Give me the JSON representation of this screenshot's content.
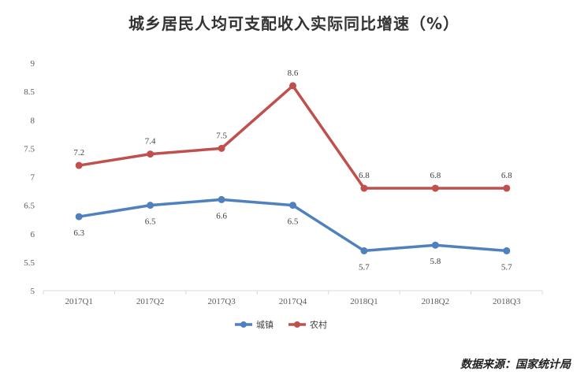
{
  "title": "城乡居民人均可支配收入实际同比增速（%）",
  "source": "数据来源：国家统计局",
  "chart_data": {
    "type": "line",
    "title": "城乡居民人均可支配收入实际同比增速（%）",
    "categories": [
      "2017Q1",
      "2017Q2",
      "2017Q3",
      "2017Q4",
      "2018Q1",
      "2018Q2",
      "2018Q3"
    ],
    "ylim": [
      5,
      9
    ],
    "yticks": [
      "5",
      "5.5",
      "6",
      "6.5",
      "7",
      "7.5",
      "8",
      "8.5",
      "9"
    ],
    "grid": false,
    "legend_position": "bottom",
    "series": [
      {
        "name": "城镇",
        "color": "#4f81bd",
        "values": [
          6.3,
          6.5,
          6.6,
          6.5,
          5.7,
          5.8,
          5.7
        ],
        "labels": [
          "6.3",
          "6.5",
          "6.6",
          "6.5",
          "5.7",
          "5.8",
          "5.7"
        ]
      },
      {
        "name": "农村",
        "color": "#c0504d",
        "values": [
          7.2,
          7.4,
          7.5,
          8.6,
          6.8,
          6.8,
          6.8
        ],
        "labels": [
          "7.2",
          "7.4",
          "7.5",
          "8.6",
          "6.8",
          "6.8",
          "6.8"
        ]
      }
    ]
  }
}
